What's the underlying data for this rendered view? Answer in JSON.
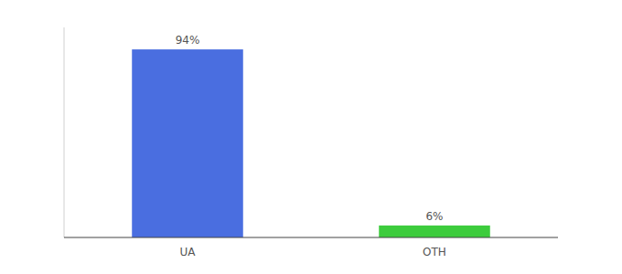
{
  "chart_data": {
    "type": "bar",
    "categories": [
      "UA",
      "OTH"
    ],
    "values": [
      94,
      6
    ],
    "value_labels": [
      "94%",
      "6%"
    ],
    "colors": [
      "#4a6ee0",
      "#3dcc3d"
    ],
    "ylim": [
      0,
      105
    ],
    "data_labels": true,
    "tick_labels": "x",
    "grid": false
  }
}
